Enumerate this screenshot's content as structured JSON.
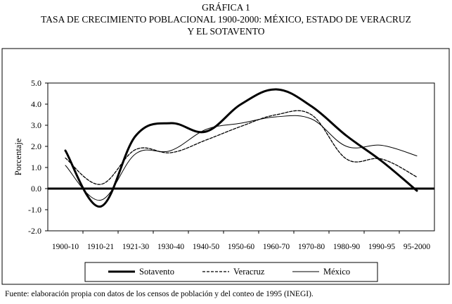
{
  "header": {
    "figure_label": "GRÁFICA 1",
    "title_line1": "TASA DE CRECIMIENTO POBLACIONAL 1900-2000: MÉXICO, ESTADO DE VERACRUZ",
    "title_line2": "Y EL SOTAVENTO"
  },
  "footer": {
    "source": "Fuente: elaboración propia con datos de los censos de población y del conteo de 1995 (INEGI)."
  },
  "chart_data": {
    "type": "line",
    "title": "TASA DE CRECIMIENTO POBLACIONAL 1900-2000: MÉXICO, ESTADO DE VERACRUZ Y EL SOTAVENTO",
    "xlabel": "",
    "ylabel": "Porcentaje",
    "ylim": [
      -2.0,
      5.0
    ],
    "y_ticks": [
      "5.0",
      "4.0",
      "3.0",
      "2.0",
      "1.0",
      "0.0",
      "-1.0",
      "-2.0"
    ],
    "categories": [
      "1900-10",
      "1910-21",
      "1921-30",
      "1930-40",
      "1940-50",
      "1950-60",
      "1960-70",
      "1970-80",
      "1980-90",
      "1990-95",
      "95-2000"
    ],
    "grid": false,
    "legend": "bottom",
    "series": [
      {
        "name": "Sotavento",
        "style": "solid-thick",
        "color": "#000000",
        "values": [
          1.8,
          -0.85,
          2.5,
          3.1,
          2.7,
          4.0,
          4.7,
          3.9,
          2.5,
          1.3,
          -0.1
        ]
      },
      {
        "name": "Veracruz",
        "style": "dashed",
        "color": "#000000",
        "values": [
          1.45,
          0.2,
          1.85,
          1.7,
          2.3,
          2.95,
          3.5,
          3.5,
          1.4,
          1.4,
          0.55
        ]
      },
      {
        "name": "México",
        "style": "solid-thin",
        "color": "#000000",
        "values": [
          1.1,
          -0.55,
          1.65,
          1.8,
          2.8,
          3.1,
          3.4,
          3.3,
          2.0,
          2.05,
          1.55
        ]
      }
    ]
  }
}
